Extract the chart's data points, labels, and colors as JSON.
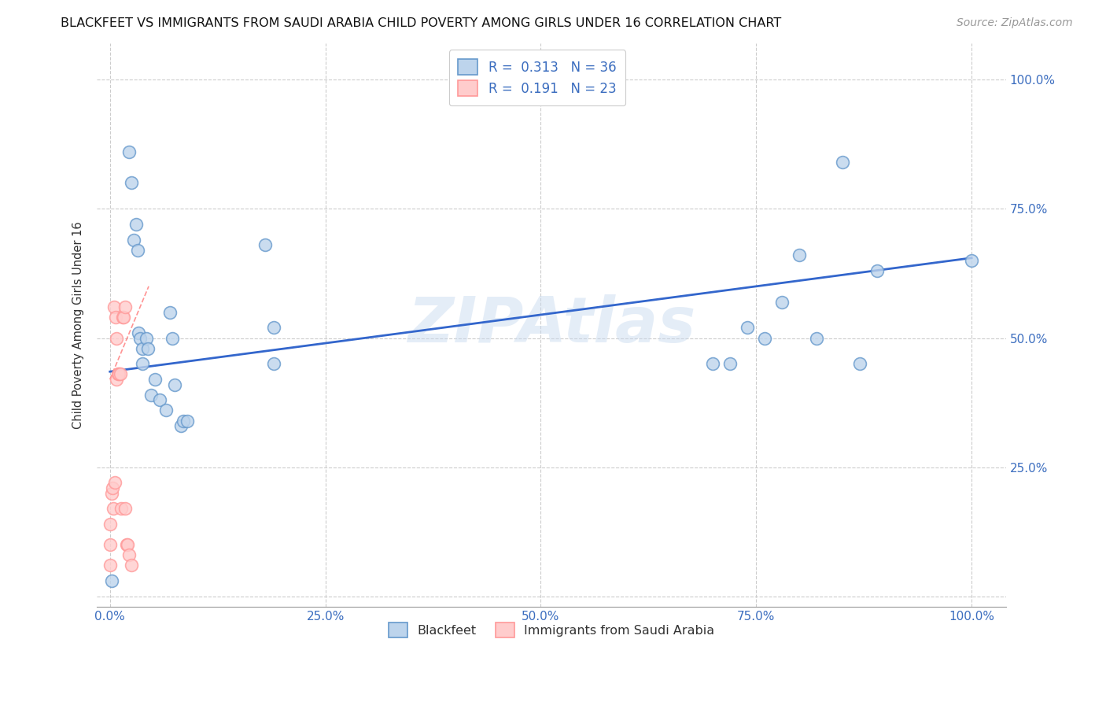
{
  "title": "BLACKFEET VS IMMIGRANTS FROM SAUDI ARABIA CHILD POVERTY AMONG GIRLS UNDER 16 CORRELATION CHART",
  "source": "Source: ZipAtlas.com",
  "ylabel": "Child Poverty Among Girls Under 16",
  "watermark": "ZIPAtlas",
  "legend_blue_R": "0.313",
  "legend_blue_N": "36",
  "legend_pink_R": "0.191",
  "legend_pink_N": "23",
  "legend_label1": "Blackfeet",
  "legend_label2": "Immigrants from Saudi Arabia",
  "blue_scatter_x": [
    0.002,
    0.022,
    0.025,
    0.028,
    0.03,
    0.032,
    0.033,
    0.035,
    0.038,
    0.038,
    0.042,
    0.044,
    0.048,
    0.052,
    0.058,
    0.065,
    0.07,
    0.072,
    0.075,
    0.082,
    0.085,
    0.09,
    0.18,
    0.19,
    0.19,
    0.7,
    0.72,
    0.74,
    0.76,
    0.78,
    0.8,
    0.82,
    0.85,
    0.87,
    0.89,
    1.0
  ],
  "blue_scatter_y": [
    0.03,
    0.86,
    0.8,
    0.69,
    0.72,
    0.67,
    0.51,
    0.5,
    0.48,
    0.45,
    0.5,
    0.48,
    0.39,
    0.42,
    0.38,
    0.36,
    0.55,
    0.5,
    0.41,
    0.33,
    0.34,
    0.34,
    0.68,
    0.52,
    0.45,
    0.45,
    0.45,
    0.52,
    0.5,
    0.57,
    0.66,
    0.5,
    0.84,
    0.45,
    0.63,
    0.65
  ],
  "blue_line_x": [
    0.0,
    1.0
  ],
  "blue_line_y": [
    0.435,
    0.655
  ],
  "pink_scatter_x": [
    0.0,
    0.0,
    0.0,
    0.002,
    0.003,
    0.004,
    0.005,
    0.006,
    0.007,
    0.008,
    0.008,
    0.009,
    0.01,
    0.012,
    0.013,
    0.015,
    0.016,
    0.018,
    0.018,
    0.019,
    0.02,
    0.022,
    0.025
  ],
  "pink_scatter_y": [
    0.06,
    0.1,
    0.14,
    0.2,
    0.21,
    0.17,
    0.56,
    0.22,
    0.54,
    0.5,
    0.42,
    0.43,
    0.43,
    0.43,
    0.17,
    0.54,
    0.54,
    0.17,
    0.56,
    0.1,
    0.1,
    0.08,
    0.06
  ],
  "pink_line_x": [
    0.0,
    0.045
  ],
  "pink_line_y": [
    0.42,
    0.6
  ],
  "blue_color": "#6699CC",
  "blue_face": "#BDD4EC",
  "pink_color": "#FF9999",
  "pink_face": "#FFCCCC",
  "blue_line_color": "#3366CC",
  "pink_line_color": "#FF6666",
  "grid_color": "#CCCCCC",
  "background_color": "#FFFFFF",
  "title_fontsize": 11.5,
  "source_fontsize": 10,
  "watermark_color": "#C5D8EE",
  "watermark_alpha": 0.45,
  "scatter_size": 130,
  "xticks": [
    0.0,
    0.25,
    0.5,
    0.75,
    1.0
  ],
  "xlabels": [
    "0.0%",
    "25.0%",
    "50.0%",
    "75.0%",
    "100.0%"
  ],
  "yticks": [
    0.0,
    0.25,
    0.5,
    0.75,
    1.0
  ],
  "ylabels": [
    "",
    "25.0%",
    "50.0%",
    "75.0%",
    "100.0%"
  ]
}
